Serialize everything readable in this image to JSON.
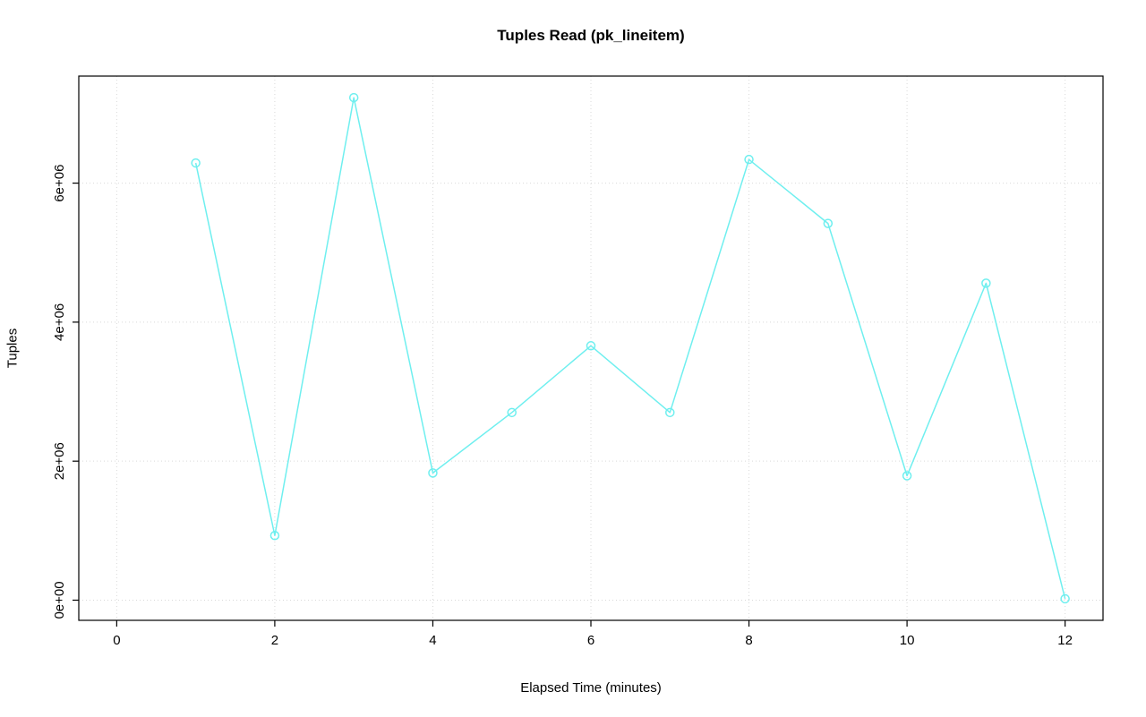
{
  "chart_data": {
    "type": "line",
    "title": "Tuples Read (pk_lineitem)",
    "xlabel": "Elapsed Time (minutes)",
    "ylabel": "Tuples",
    "x": [
      1,
      2,
      3,
      4,
      5,
      6,
      7,
      8,
      9,
      10,
      11,
      12
    ],
    "values": [
      6290000,
      930000,
      7230000,
      1830000,
      2700000,
      3660000,
      2700000,
      6340000,
      5420000,
      1790000,
      4560000,
      20000
    ],
    "xlim": [
      0,
      12
    ],
    "ylim": [
      0,
      7250000
    ],
    "xticks": [
      0,
      2,
      4,
      6,
      8,
      10,
      12
    ],
    "xtick_labels": [
      "0",
      "2",
      "4",
      "6",
      "8",
      "10",
      "12"
    ],
    "yticks": [
      0,
      2000000,
      4000000,
      6000000
    ],
    "ytick_labels": [
      "0e+00",
      "2e+06",
      "4e+06",
      "6e+06"
    ],
    "grid": true,
    "legend_position": "none",
    "marker": "open-circle",
    "series_color": "#6FEFEF",
    "grid_color": "#D9D9D9",
    "axis_color": "#000000"
  }
}
